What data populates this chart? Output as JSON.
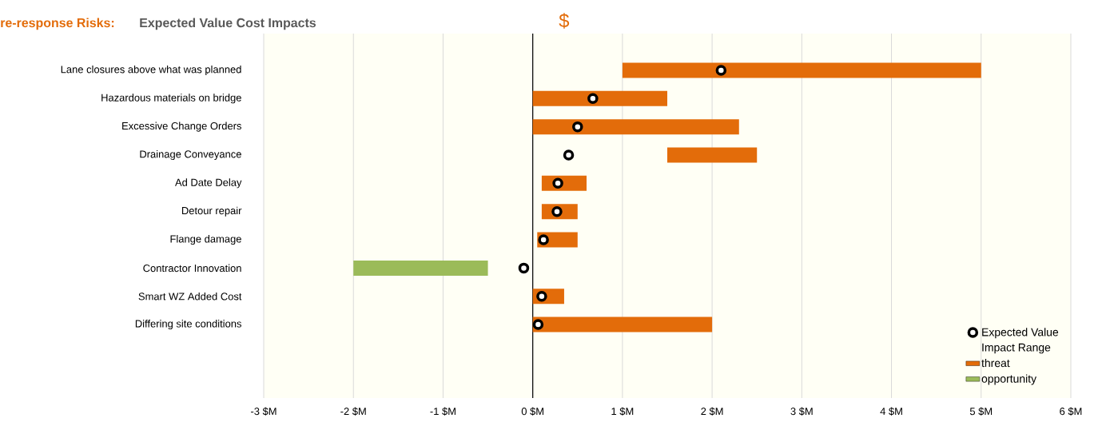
{
  "chart_data": {
    "type": "bar",
    "orientation": "horizontal",
    "title": "re-response Risks:",
    "subtitle": "Expected Value Cost Impacts",
    "annotations": [
      "$"
    ],
    "categories": [
      "Lane closures above what was planned",
      "Hazardous materials on bridge",
      "Excessive Change Orders",
      "Drainage Conveyance",
      "Ad Date Delay",
      "Detour repair",
      "Flange damage",
      "Contractor Innovation",
      "Smart WZ Added Cost",
      "Differing site conditions"
    ],
    "series": [
      {
        "name": "threat",
        "color": "#e36c0a",
        "base": [
          1,
          0,
          0,
          1.5,
          0.1,
          0.1,
          0.05,
          null,
          0,
          0
        ],
        "values": [
          4,
          1.5,
          2.3,
          1,
          0.5,
          0.4,
          0.45,
          null,
          0.35,
          2
        ]
      },
      {
        "name": "opportunity",
        "color": "#9bbb59",
        "base": [
          null,
          null,
          null,
          null,
          null,
          null,
          null,
          -2,
          null,
          null
        ],
        "values": [
          null,
          null,
          null,
          null,
          null,
          null,
          null,
          1.5,
          null,
          null
        ]
      },
      {
        "name": "Expected Value",
        "type": "scatter",
        "marker": "circle",
        "color": "#000000",
        "values": [
          2.1,
          0.67,
          0.5,
          0.4,
          0.28,
          0.27,
          0.12,
          -0.1,
          0.1,
          0.06
        ]
      }
    ],
    "xlim": [
      -3,
      6
    ],
    "xticks": [
      {
        "value": -3,
        "label": "-3 $M"
      },
      {
        "value": -2,
        "label": "-2 $M"
      },
      {
        "value": -1,
        "label": "-1 $M"
      },
      {
        "value": 0,
        "label": "0 $M"
      },
      {
        "value": 1,
        "label": "1 $M"
      },
      {
        "value": 2,
        "label": "2 $M"
      },
      {
        "value": 3,
        "label": "3 $M"
      },
      {
        "value": 4,
        "label": "4 $M"
      },
      {
        "value": 5,
        "label": "5 $M"
      },
      {
        "value": 6,
        "label": "6 $M"
      }
    ],
    "grid": "x",
    "legend": "bottom right",
    "legend_title": "Impact Range",
    "ref_lines": [
      {
        "axis": "x",
        "value": 0,
        "color": "#000000"
      }
    ]
  }
}
